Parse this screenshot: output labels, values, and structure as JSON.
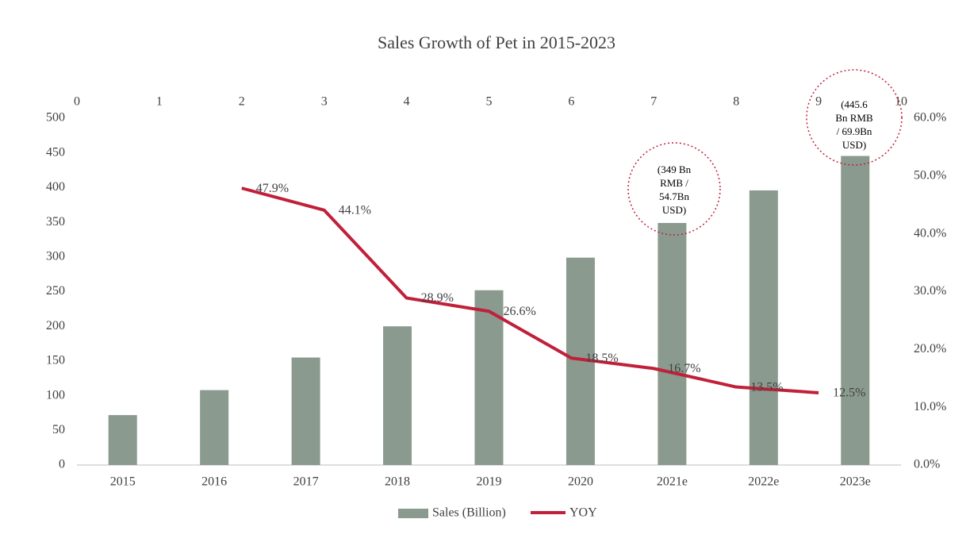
{
  "chart_data": {
    "type": "bar",
    "title": "Sales Growth of Pet in 2015-2023",
    "categories": [
      "2015",
      "2016",
      "2017",
      "2018",
      "2019",
      "2020",
      "2021e",
      "2022e",
      "2023e"
    ],
    "series": [
      {
        "name": "Sales (Billion)",
        "type": "bar",
        "color": "#8a9a8e",
        "values": [
          72,
          108,
          155,
          200,
          252,
          299,
          349,
          396,
          445.6
        ]
      },
      {
        "name": "YOY",
        "type": "line",
        "axis": "y2",
        "color": "#c0203a",
        "x": [
          2,
          3,
          4,
          5,
          6,
          7,
          8,
          9
        ],
        "values": [
          47.9,
          44.1,
          28.9,
          26.6,
          18.5,
          16.7,
          13.5,
          12.5
        ],
        "value_labels": [
          "47.9%",
          "44.1%",
          "28.9%",
          "26.6%",
          "18.5%",
          "16.7%",
          "13.5%",
          "12.5%"
        ]
      }
    ],
    "ylim": [
      0,
      500
    ],
    "yticks": [
      0,
      50,
      100,
      150,
      200,
      250,
      300,
      350,
      400,
      450,
      500
    ],
    "y2lim": [
      0,
      60
    ],
    "y2ticks": [
      {
        "value": 0,
        "label": "0.0%"
      },
      {
        "value": 10,
        "label": "10.0%"
      },
      {
        "value": 20,
        "label": "20.0%"
      },
      {
        "value": 30,
        "label": "30.0%"
      },
      {
        "value": 40,
        "label": "40.0%"
      },
      {
        "value": 50,
        "label": "50.0%"
      },
      {
        "value": 60,
        "label": "60.0%"
      }
    ],
    "xlim": [
      0,
      10
    ],
    "xticks": [
      0,
      1,
      2,
      3,
      4,
      5,
      6,
      7,
      8,
      9,
      10
    ],
    "annotations": [
      {
        "lines": [
          "(349 Bn",
          "RMB /",
          "54.7Bn",
          "USD)"
        ]
      },
      {
        "lines": [
          "(445.6",
          "Bn RMB",
          "/ 69.9Bn",
          "USD)"
        ]
      }
    ],
    "legend": "bottom"
  }
}
